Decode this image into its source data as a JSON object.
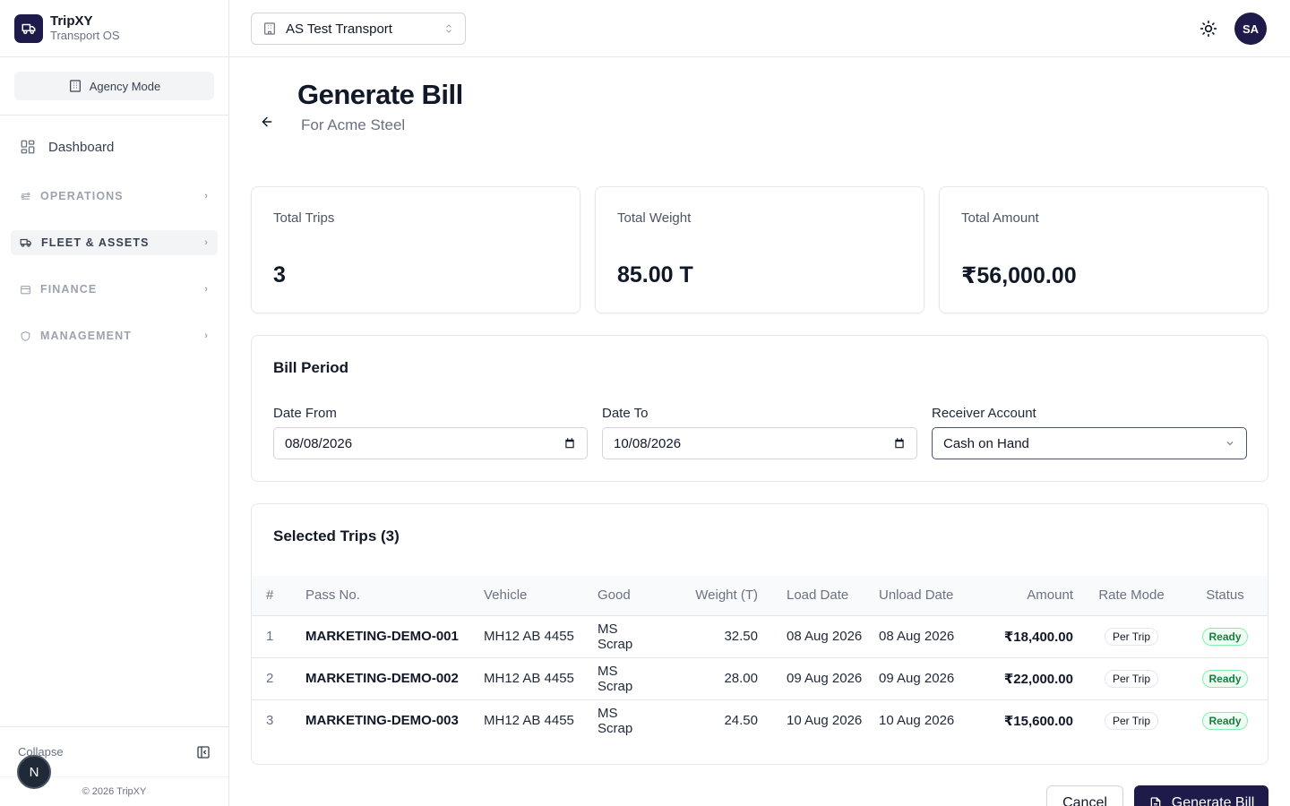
{
  "brand": {
    "name": "TripXY",
    "subtitle": "Transport OS"
  },
  "sidebar": {
    "mode_label": "Agency Mode",
    "dashboard_label": "Dashboard",
    "groups": [
      {
        "label": "OPERATIONS",
        "icon": "operations-icon",
        "active": false
      },
      {
        "label": "FLEET & ASSETS",
        "icon": "truck-icon",
        "active": true
      },
      {
        "label": "FINANCE",
        "icon": "wallet-icon",
        "active": false
      },
      {
        "label": "MANAGEMENT",
        "icon": "shield-icon",
        "active": false
      }
    ],
    "collapse_label": "Collapse",
    "copyright": "© 2026 TripXY",
    "floating_badge": "N"
  },
  "topbar": {
    "organization": "AS Test Transport",
    "avatar_initials": "SA"
  },
  "page": {
    "title": "Generate Bill",
    "subtitle": "For Acme Steel"
  },
  "stats": [
    {
      "label": "Total Trips",
      "value": "3"
    },
    {
      "label": "Total Weight",
      "value": "85.00 T"
    },
    {
      "label": "Total Amount",
      "value": "₹56,000.00"
    }
  ],
  "bill_period": {
    "title": "Bill Period",
    "date_from_label": "Date From",
    "date_from_value": "08/08/2026",
    "date_to_label": "Date To",
    "date_to_value": "10/08/2026",
    "receiver_label": "Receiver Account",
    "receiver_value": "Cash on Hand"
  },
  "trips": {
    "title": "Selected Trips (3)",
    "columns": [
      "#",
      "Pass No.",
      "Vehicle",
      "Good",
      "Weight (T)",
      "Load Date",
      "Unload Date",
      "Amount",
      "Rate Mode",
      "Status"
    ],
    "rows": [
      {
        "idx": "1",
        "pass_no": "MARKETING-DEMO-001",
        "vehicle": "MH12 AB 4455",
        "good": "MS Scrap",
        "weight": "32.50",
        "load_date": "08 Aug 2026",
        "unload_date": "08 Aug 2026",
        "amount": "₹18,400.00",
        "rate_mode": "Per Trip",
        "status": "Ready"
      },
      {
        "idx": "2",
        "pass_no": "MARKETING-DEMO-002",
        "vehicle": "MH12 AB 4455",
        "good": "MS Scrap",
        "weight": "28.00",
        "load_date": "09 Aug 2026",
        "unload_date": "09 Aug 2026",
        "amount": "₹22,000.00",
        "rate_mode": "Per Trip",
        "status": "Ready"
      },
      {
        "idx": "3",
        "pass_no": "MARKETING-DEMO-003",
        "vehicle": "MH12 AB 4455",
        "good": "MS Scrap",
        "weight": "24.50",
        "load_date": "10 Aug 2026",
        "unload_date": "10 Aug 2026",
        "amount": "₹15,600.00",
        "rate_mode": "Per Trip",
        "status": "Ready"
      }
    ]
  },
  "actions": {
    "cancel_label": "Cancel",
    "generate_label": "Generate Bill"
  },
  "colors": {
    "brand_dark": "#1e1b4b",
    "ready_green": "#15803d"
  }
}
